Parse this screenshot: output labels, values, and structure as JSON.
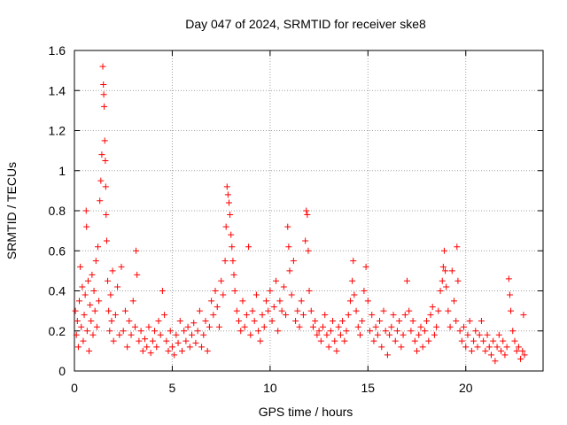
{
  "chart_data": {
    "type": "scatter",
    "title": "Day 047 of 2024, SRMTID for receiver ske8",
    "xlabel": "GPS time / hours",
    "ylabel": "SRMTID / TECUs",
    "xlim": [
      0,
      23.95
    ],
    "ylim": [
      0,
      1.6
    ],
    "xticks": [
      0,
      5,
      10,
      15,
      20
    ],
    "xtick_labels": [
      "0",
      "5",
      "10",
      "15",
      "20"
    ],
    "yticks": [
      0,
      0.2,
      0.4,
      0.6,
      0.8,
      1.0,
      1.2,
      1.4,
      1.6
    ],
    "ytick_labels": [
      "0",
      "0.2",
      "0.4",
      "0.6",
      "0.8",
      "1",
      "1.2",
      "1.4",
      "1.6"
    ],
    "grid": true,
    "marker": "+",
    "color": "#ff0000",
    "series": [
      {
        "name": "SRMTID",
        "points": [
          [
            0.05,
            0.3
          ],
          [
            0.1,
            0.18
          ],
          [
            0.15,
            0.25
          ],
          [
            0.2,
            0.12
          ],
          [
            0.25,
            0.35
          ],
          [
            0.3,
            0.52
          ],
          [
            0.35,
            0.22
          ],
          [
            0.4,
            0.42
          ],
          [
            0.45,
            0.15
          ],
          [
            0.5,
            0.28
          ],
          [
            0.55,
            0.38
          ],
          [
            0.6,
            0.8
          ],
          [
            0.62,
            0.72
          ],
          [
            0.65,
            0.2
          ],
          [
            0.7,
            0.45
          ],
          [
            0.75,
            0.1
          ],
          [
            0.8,
            0.33
          ],
          [
            0.85,
            0.25
          ],
          [
            0.9,
            0.48
          ],
          [
            0.95,
            0.18
          ],
          [
            1.0,
            0.4
          ],
          [
            1.05,
            0.3
          ],
          [
            1.1,
            0.55
          ],
          [
            1.15,
            0.22
          ],
          [
            1.2,
            0.62
          ],
          [
            1.25,
            0.35
          ],
          [
            1.3,
            0.85
          ],
          [
            1.35,
            0.95
          ],
          [
            1.4,
            1.08
          ],
          [
            1.45,
            1.52
          ],
          [
            1.48,
            1.43
          ],
          [
            1.5,
            1.38
          ],
          [
            1.52,
            1.32
          ],
          [
            1.55,
            1.15
          ],
          [
            1.58,
            1.05
          ],
          [
            1.6,
            0.92
          ],
          [
            1.62,
            0.78
          ],
          [
            1.65,
            0.65
          ],
          [
            1.7,
            0.45
          ],
          [
            1.75,
            0.3
          ],
          [
            1.8,
            0.2
          ],
          [
            1.85,
            0.38
          ],
          [
            1.9,
            0.25
          ],
          [
            1.95,
            0.5
          ],
          [
            2.0,
            0.15
          ],
          [
            2.1,
            0.28
          ],
          [
            2.2,
            0.42
          ],
          [
            2.3,
            0.18
          ],
          [
            2.4,
            0.52
          ],
          [
            2.5,
            0.2
          ],
          [
            2.6,
            0.3
          ],
          [
            2.7,
            0.12
          ],
          [
            2.8,
            0.25
          ],
          [
            2.9,
            0.18
          ],
          [
            3.0,
            0.35
          ],
          [
            3.1,
            0.22
          ],
          [
            3.15,
            0.6
          ],
          [
            3.2,
            0.48
          ],
          [
            3.3,
            0.15
          ],
          [
            3.4,
            0.2
          ],
          [
            3.5,
            0.1
          ],
          [
            3.6,
            0.16
          ],
          [
            3.7,
            0.12
          ],
          [
            3.8,
            0.22
          ],
          [
            3.9,
            0.09
          ],
          [
            4.0,
            0.15
          ],
          [
            4.1,
            0.2
          ],
          [
            4.2,
            0.12
          ],
          [
            4.3,
            0.25
          ],
          [
            4.4,
            0.18
          ],
          [
            4.5,
            0.4
          ],
          [
            4.6,
            0.28
          ],
          [
            4.7,
            0.15
          ],
          [
            4.8,
            0.1
          ],
          [
            4.9,
            0.2
          ],
          [
            5.0,
            0.12
          ],
          [
            5.1,
            0.08
          ],
          [
            5.2,
            0.18
          ],
          [
            5.3,
            0.14
          ],
          [
            5.4,
            0.25
          ],
          [
            5.5,
            0.1
          ],
          [
            5.6,
            0.2
          ],
          [
            5.7,
            0.15
          ],
          [
            5.8,
            0.22
          ],
          [
            5.9,
            0.12
          ],
          [
            6.0,
            0.18
          ],
          [
            6.1,
            0.24
          ],
          [
            6.2,
            0.14
          ],
          [
            6.3,
            0.2
          ],
          [
            6.4,
            0.3
          ],
          [
            6.5,
            0.12
          ],
          [
            6.6,
            0.18
          ],
          [
            6.7,
            0.25
          ],
          [
            6.8,
            0.1
          ],
          [
            6.9,
            0.22
          ],
          [
            7.0,
            0.35
          ],
          [
            7.1,
            0.28
          ],
          [
            7.2,
            0.4
          ],
          [
            7.3,
            0.32
          ],
          [
            7.4,
            0.22
          ],
          [
            7.5,
            0.45
          ],
          [
            7.6,
            0.38
          ],
          [
            7.7,
            0.55
          ],
          [
            7.75,
            0.72
          ],
          [
            7.8,
            0.92
          ],
          [
            7.85,
            0.88
          ],
          [
            7.9,
            0.84
          ],
          [
            7.95,
            0.78
          ],
          [
            8.0,
            0.68
          ],
          [
            8.05,
            0.62
          ],
          [
            8.1,
            0.55
          ],
          [
            8.15,
            0.48
          ],
          [
            8.2,
            0.4
          ],
          [
            8.3,
            0.3
          ],
          [
            8.4,
            0.25
          ],
          [
            8.5,
            0.2
          ],
          [
            8.6,
            0.35
          ],
          [
            8.7,
            0.22
          ],
          [
            8.8,
            0.28
          ],
          [
            8.9,
            0.62
          ],
          [
            9.0,
            0.18
          ],
          [
            9.1,
            0.3
          ],
          [
            9.2,
            0.25
          ],
          [
            9.3,
            0.38
          ],
          [
            9.4,
            0.2
          ],
          [
            9.5,
            0.15
          ],
          [
            9.6,
            0.28
          ],
          [
            9.7,
            0.22
          ],
          [
            9.8,
            0.35
          ],
          [
            9.9,
            0.3
          ],
          [
            10.0,
            0.4
          ],
          [
            10.1,
            0.25
          ],
          [
            10.2,
            0.32
          ],
          [
            10.3,
            0.45
          ],
          [
            10.4,
            0.2
          ],
          [
            10.5,
            0.35
          ],
          [
            10.6,
            0.3
          ],
          [
            10.7,
            0.42
          ],
          [
            10.8,
            0.28
          ],
          [
            10.9,
            0.72
          ],
          [
            10.95,
            0.62
          ],
          [
            11.0,
            0.5
          ],
          [
            11.1,
            0.38
          ],
          [
            11.2,
            0.55
          ],
          [
            11.3,
            0.25
          ],
          [
            11.4,
            0.3
          ],
          [
            11.5,
            0.22
          ],
          [
            11.6,
            0.35
          ],
          [
            11.7,
            0.28
          ],
          [
            11.8,
            0.65
          ],
          [
            11.85,
            0.8
          ],
          [
            11.9,
            0.78
          ],
          [
            11.95,
            0.6
          ],
          [
            12.0,
            0.4
          ],
          [
            12.1,
            0.3
          ],
          [
            12.2,
            0.22
          ],
          [
            12.3,
            0.25
          ],
          [
            12.4,
            0.18
          ],
          [
            12.5,
            0.2
          ],
          [
            12.6,
            0.15
          ],
          [
            12.7,
            0.22
          ],
          [
            12.8,
            0.28
          ],
          [
            12.9,
            0.18
          ],
          [
            13.0,
            0.12
          ],
          [
            13.1,
            0.2
          ],
          [
            13.2,
            0.25
          ],
          [
            13.3,
            0.15
          ],
          [
            13.4,
            0.1
          ],
          [
            13.5,
            0.22
          ],
          [
            13.6,
            0.18
          ],
          [
            13.7,
            0.25
          ],
          [
            13.8,
            0.15
          ],
          [
            13.9,
            0.2
          ],
          [
            14.0,
            0.28
          ],
          [
            14.1,
            0.35
          ],
          [
            14.2,
            0.45
          ],
          [
            14.25,
            0.55
          ],
          [
            14.3,
            0.38
          ],
          [
            14.4,
            0.3
          ],
          [
            14.5,
            0.22
          ],
          [
            14.6,
            0.18
          ],
          [
            14.7,
            0.25
          ],
          [
            14.8,
            0.4
          ],
          [
            14.9,
            0.52
          ],
          [
            15.0,
            0.35
          ],
          [
            15.1,
            0.2
          ],
          [
            15.2,
            0.28
          ],
          [
            15.3,
            0.15
          ],
          [
            15.4,
            0.22
          ],
          [
            15.5,
            0.18
          ],
          [
            15.6,
            0.25
          ],
          [
            15.7,
            0.12
          ],
          [
            15.8,
            0.3
          ],
          [
            15.9,
            0.2
          ],
          [
            16.0,
            0.08
          ],
          [
            16.1,
            0.18
          ],
          [
            16.2,
            0.22
          ],
          [
            16.3,
            0.28
          ],
          [
            16.4,
            0.15
          ],
          [
            16.5,
            0.2
          ],
          [
            16.6,
            0.25
          ],
          [
            16.7,
            0.12
          ],
          [
            16.8,
            0.18
          ],
          [
            16.9,
            0.28
          ],
          [
            17.0,
            0.45
          ],
          [
            17.1,
            0.3
          ],
          [
            17.2,
            0.2
          ],
          [
            17.3,
            0.25
          ],
          [
            17.4,
            0.15
          ],
          [
            17.5,
            0.1
          ],
          [
            17.6,
            0.18
          ],
          [
            17.7,
            0.22
          ],
          [
            17.8,
            0.12
          ],
          [
            17.9,
            0.2
          ],
          [
            18.0,
            0.25
          ],
          [
            18.1,
            0.15
          ],
          [
            18.2,
            0.28
          ],
          [
            18.3,
            0.32
          ],
          [
            18.4,
            0.18
          ],
          [
            18.5,
            0.22
          ],
          [
            18.6,
            0.3
          ],
          [
            18.7,
            0.4
          ],
          [
            18.8,
            0.45
          ],
          [
            18.85,
            0.52
          ],
          [
            18.9,
            0.6
          ],
          [
            18.95,
            0.5
          ],
          [
            19.0,
            0.42
          ],
          [
            19.1,
            0.3
          ],
          [
            19.2,
            0.22
          ],
          [
            19.3,
            0.5
          ],
          [
            19.4,
            0.35
          ],
          [
            19.5,
            0.25
          ],
          [
            19.55,
            0.62
          ],
          [
            19.6,
            0.45
          ],
          [
            19.7,
            0.2
          ],
          [
            19.8,
            0.15
          ],
          [
            19.9,
            0.22
          ],
          [
            20.0,
            0.12
          ],
          [
            20.1,
            0.18
          ],
          [
            20.2,
            0.25
          ],
          [
            20.3,
            0.1
          ],
          [
            20.4,
            0.15
          ],
          [
            20.5,
            0.2
          ],
          [
            20.6,
            0.12
          ],
          [
            20.7,
            0.18
          ],
          [
            20.8,
            0.25
          ],
          [
            20.9,
            0.15
          ],
          [
            21.0,
            0.1
          ],
          [
            21.1,
            0.18
          ],
          [
            21.2,
            0.12
          ],
          [
            21.3,
            0.08
          ],
          [
            21.4,
            0.15
          ],
          [
            21.5,
            0.05
          ],
          [
            21.6,
            0.12
          ],
          [
            21.7,
            0.18
          ],
          [
            21.8,
            0.1
          ],
          [
            21.9,
            0.15
          ],
          [
            22.0,
            0.08
          ],
          [
            22.1,
            0.12
          ],
          [
            22.2,
            0.46
          ],
          [
            22.25,
            0.38
          ],
          [
            22.3,
            0.3
          ],
          [
            22.4,
            0.2
          ],
          [
            22.5,
            0.15
          ],
          [
            22.6,
            0.1
          ],
          [
            22.7,
            0.12
          ],
          [
            22.8,
            0.06
          ],
          [
            22.9,
            0.1
          ],
          [
            22.95,
            0.28
          ],
          [
            23.0,
            0.08
          ]
        ]
      }
    ]
  }
}
